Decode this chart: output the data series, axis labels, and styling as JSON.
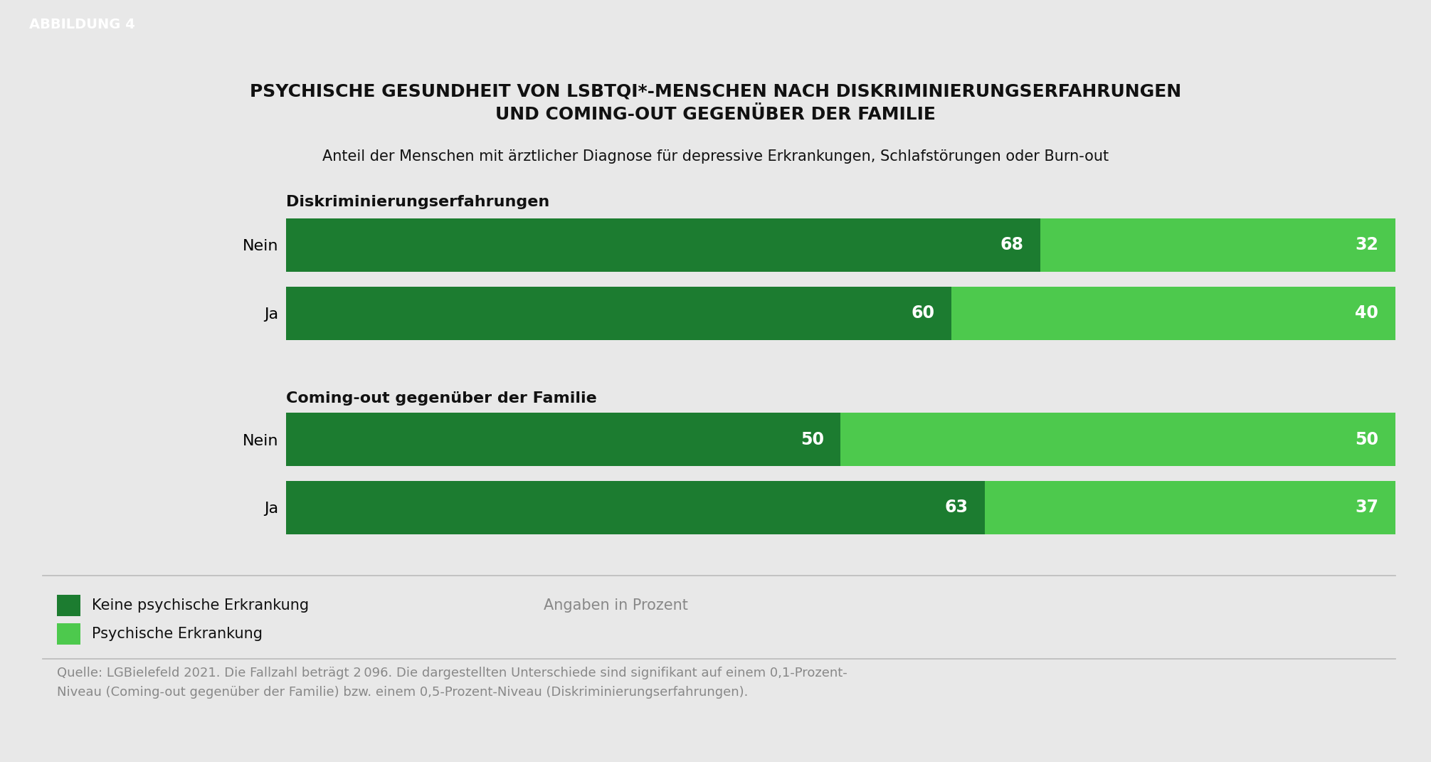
{
  "title_line1": "PSYCHISCHE GESUNDHEIT VON LSBTQI*-MENSCHEN NACH DISKRIMINIERUNGSERFAHRUNGEN",
  "title_line2": "UND COMING-OUT GEGENÜBER DER FAMILIE",
  "subtitle": "Anteil der Menschen mit ärztlicher Diagnose für depressive Erkrankungen, Schlafstörungen oder Burn-out",
  "abbildung_label": "ABBILDUNG 4",
  "section1_label": "Diskriminierungserfahrungen",
  "section2_label": "Coming-out gegenüber der Familie",
  "bars": [
    {
      "group": 1,
      "label": "Nein",
      "val1": 68,
      "val2": 32
    },
    {
      "group": 1,
      "label": "Ja",
      "val1": 60,
      "val2": 40
    },
    {
      "group": 2,
      "label": "Nein",
      "val1": 50,
      "val2": 50
    },
    {
      "group": 2,
      "label": "Ja",
      "val1": 63,
      "val2": 37
    }
  ],
  "color_dark_green": "#1c7c30",
  "color_light_green": "#4dc94d",
  "background_color": "#e8e8e8",
  "header_bg": "#1a1a1a",
  "header_text_color": "#ffffff",
  "legend_label1": "Keine psychische Erkrankung",
  "legend_label2": "Psychische Erkrankung",
  "angaben_label": "Angaben in Prozent",
  "source_text": "Quelle: LGBielefeld 2021. Die Fallzahl beträgt 2 096. Die dargestellten Unterschiede sind signifikant auf einem 0,1-Prozent-\nNiveau (Coming-out gegenüber der Familie) bzw. einem 0,5-Prozent-Niveau (Diskriminierungserfahrungen).",
  "bar_height": 0.55,
  "bar_label_fontsize": 17,
  "tick_label_fontsize": 16,
  "section_label_fontsize": 16,
  "legend_fontsize": 15,
  "source_fontsize": 13,
  "title_fontsize": 18,
  "subtitle_fontsize": 15
}
